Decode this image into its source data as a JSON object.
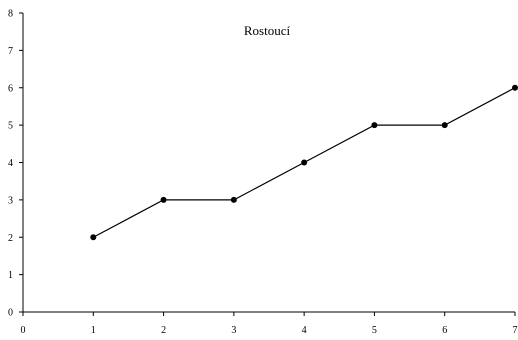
{
  "chart_data": {
    "type": "line",
    "title": "Rostoucí",
    "xlabel": "",
    "ylabel": "",
    "x": [
      1,
      2,
      3,
      4,
      5,
      6,
      7
    ],
    "series": [
      {
        "values": [
          2,
          3,
          3,
          4,
          5,
          5,
          6
        ]
      }
    ],
    "xlim": [
      0,
      7
    ],
    "ylim": [
      0,
      8
    ],
    "x_ticks": [
      "0",
      "1",
      "2",
      "3",
      "4",
      "5",
      "6",
      "7"
    ],
    "y_ticks": [
      "0",
      "1",
      "2",
      "3",
      "4",
      "5",
      "6",
      "7",
      "8"
    ],
    "grid": false,
    "legend": "none",
    "colors": {
      "line": "#000000",
      "marker": "#000000",
      "axis": "#000000"
    }
  }
}
